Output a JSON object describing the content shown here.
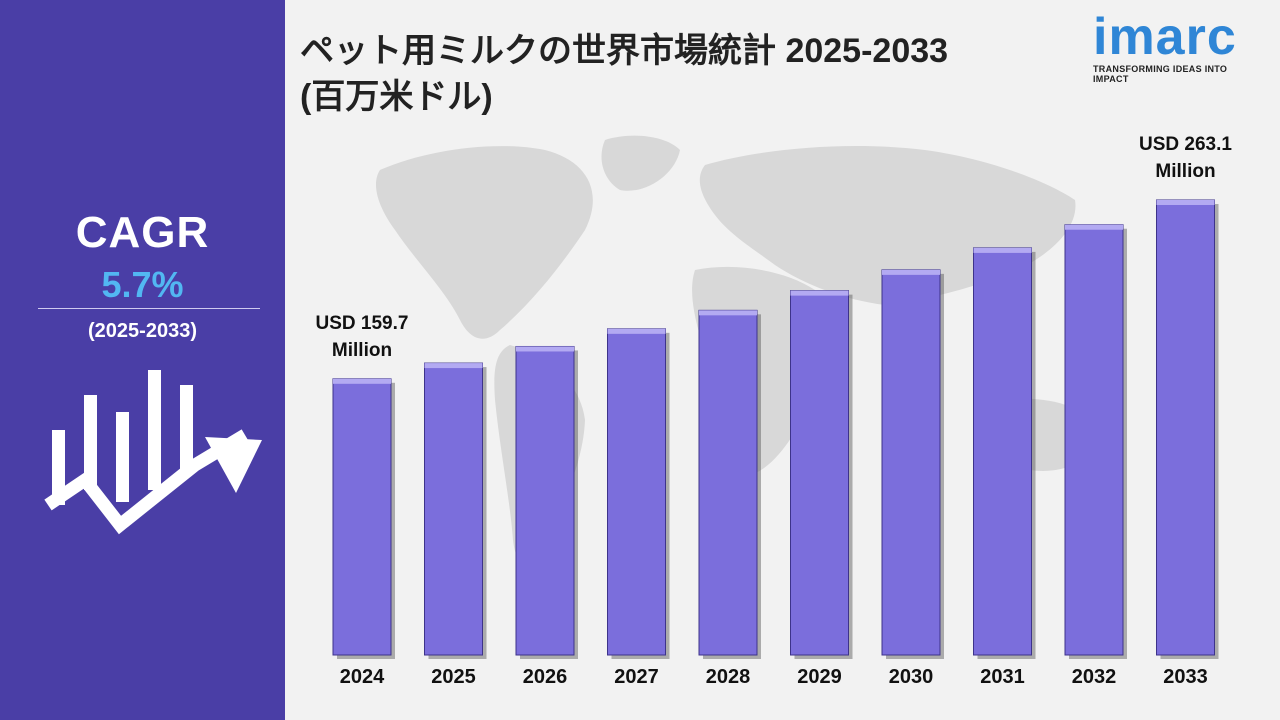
{
  "title_line1": "ペット用ミルクの世界市場統計 2025-2033",
  "title_line2": "(百万米ドル)",
  "sidebar": {
    "cagr_label": "CAGR",
    "cagr_value": "5.7%",
    "cagr_period": "(2025-2033)"
  },
  "logo": {
    "word": "imarc",
    "tagline": "TRANSFORMING IDEAS INTO IMPACT"
  },
  "colors": {
    "sidebar": "#4a3ea6",
    "bar": "#7b6edc",
    "cagr": "#52b7f2",
    "logo": "#2f86d6"
  },
  "chart_data": {
    "type": "bar",
    "categories": [
      "2024",
      "2025",
      "2026",
      "2027",
      "2028",
      "2029",
      "2030",
      "2031",
      "2032",
      "2033"
    ],
    "values": [
      159.7,
      168.8,
      178.4,
      188.6,
      199.3,
      210.7,
      222.7,
      235.4,
      248.8,
      263.1
    ],
    "annotations": [
      {
        "index": 0,
        "lines": [
          "USD 159.7",
          "Million"
        ]
      },
      {
        "index": 9,
        "lines": [
          "USD 263.1",
          "Million"
        ]
      }
    ]
  }
}
